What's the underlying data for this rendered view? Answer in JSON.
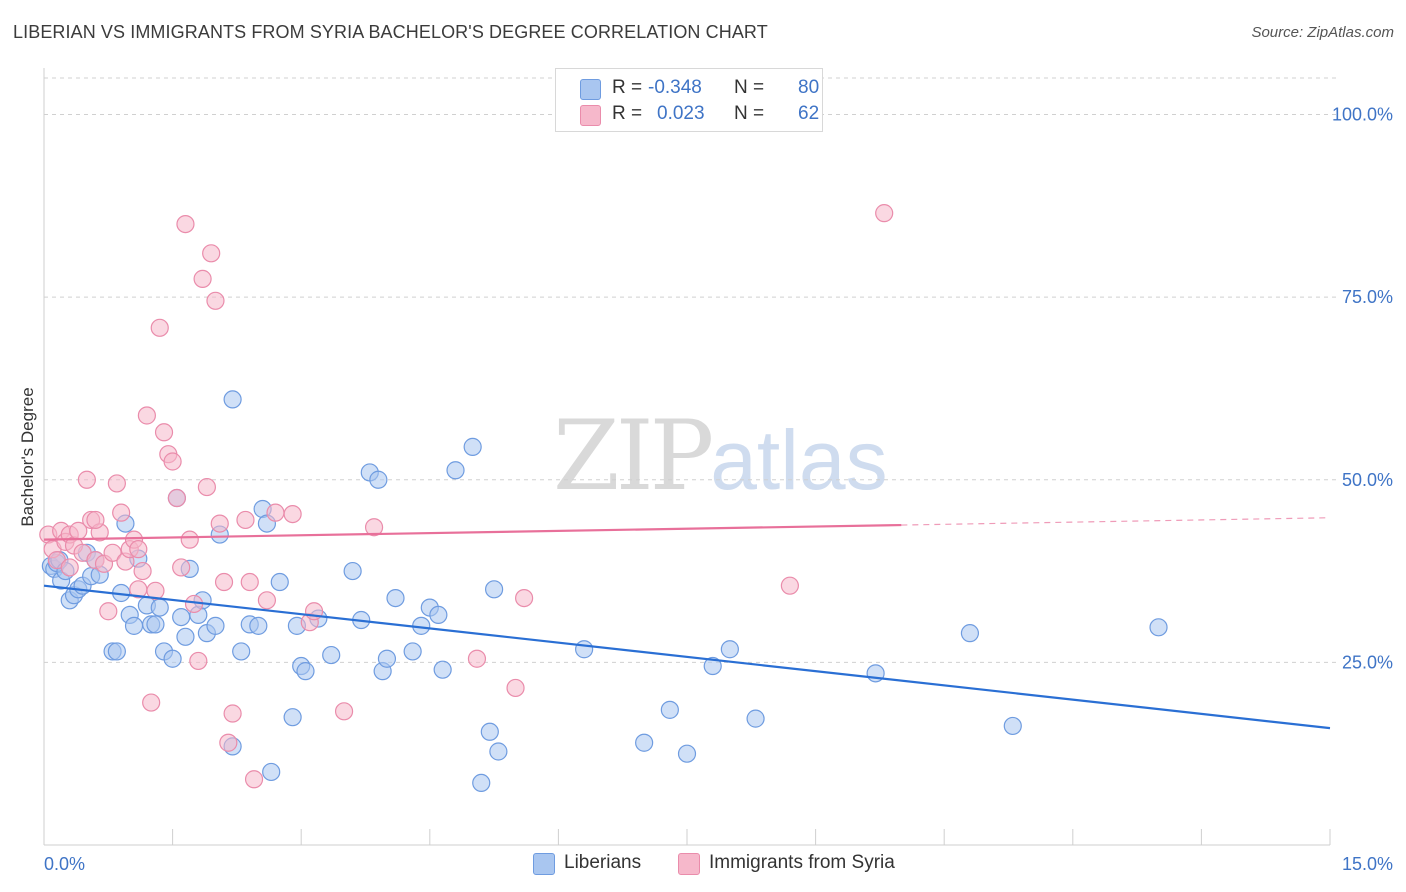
{
  "title": "LIBERIAN VS IMMIGRANTS FROM SYRIA BACHELOR'S DEGREE CORRELATION CHART",
  "source": "Source: ZipAtlas.com",
  "watermark": {
    "zip": "ZIP",
    "atlas": "atlas"
  },
  "legend": {
    "rows": [
      {
        "r_label": "R =",
        "r_value": "-0.348",
        "n_label": "N =",
        "n_value": "80"
      },
      {
        "r_label": "R =",
        "r_value": "0.023",
        "n_label": "N =",
        "n_value": "62"
      }
    ]
  },
  "bottom_legend": {
    "liberians": "Liberians",
    "syria": "Immigrants from Syria"
  },
  "colors": {
    "blue_fill": "#a9c6f0",
    "blue_stroke": "#6f9ce0",
    "blue_line": "#2a6fd4",
    "pink_fill": "#f6b8cb",
    "pink_stroke": "#ea8cab",
    "pink_line": "#e8709a",
    "tick_text": "#3f74c6",
    "grid": "#d0d0d0"
  },
  "chart_data": {
    "type": "scatter",
    "title": "LIBERIAN VS IMMIGRANTS FROM SYRIA BACHELOR'S DEGREE CORRELATION CHART",
    "xlabel": "",
    "ylabel": "Bachelor's Degree",
    "xlim": [
      0,
      15
    ],
    "ylim": [
      0,
      105
    ],
    "x_tick_labels": [
      "0.0%",
      "15.0%"
    ],
    "y_ticks": [
      25,
      50,
      75,
      100
    ],
    "y_tick_labels": [
      "25.0%",
      "50.0%",
      "75.0%",
      "100.0%"
    ],
    "grid": true,
    "legend_position": "top-center",
    "series": [
      {
        "name": "Liberians",
        "r": -0.348,
        "n": 80,
        "trend": {
          "x": [
            0,
            15
          ],
          "y": [
            35.5,
            16.0
          ]
        },
        "points": [
          [
            0.08,
            38.2
          ],
          [
            0.12,
            37.8
          ],
          [
            0.15,
            38.6
          ],
          [
            0.18,
            39.0
          ],
          [
            0.2,
            36.2
          ],
          [
            0.25,
            37.5
          ],
          [
            0.3,
            33.5
          ],
          [
            0.35,
            34.2
          ],
          [
            0.4,
            35.0
          ],
          [
            0.45,
            35.5
          ],
          [
            0.5,
            40.0
          ],
          [
            0.55,
            36.8
          ],
          [
            0.6,
            39.0
          ],
          [
            0.65,
            37.0
          ],
          [
            0.8,
            26.5
          ],
          [
            0.85,
            26.5
          ],
          [
            0.9,
            34.5
          ],
          [
            0.95,
            44.0
          ],
          [
            1.0,
            31.5
          ],
          [
            1.05,
            30.0
          ],
          [
            1.1,
            39.2
          ],
          [
            1.2,
            32.8
          ],
          [
            1.25,
            30.2
          ],
          [
            1.3,
            30.2
          ],
          [
            1.35,
            32.5
          ],
          [
            1.4,
            26.5
          ],
          [
            1.5,
            25.5
          ],
          [
            1.55,
            47.5
          ],
          [
            1.6,
            31.2
          ],
          [
            1.65,
            28.5
          ],
          [
            1.7,
            37.8
          ],
          [
            1.8,
            31.5
          ],
          [
            1.85,
            33.5
          ],
          [
            1.9,
            29.0
          ],
          [
            2.0,
            30.0
          ],
          [
            2.05,
            42.5
          ],
          [
            2.2,
            13.5
          ],
          [
            2.3,
            26.5
          ],
          [
            2.4,
            30.2
          ],
          [
            2.5,
            30.0
          ],
          [
            2.55,
            46.0
          ],
          [
            2.6,
            44.0
          ],
          [
            2.65,
            10.0
          ],
          [
            2.75,
            36.0
          ],
          [
            2.9,
            17.5
          ],
          [
            2.95,
            30.0
          ],
          [
            3.0,
            24.5
          ],
          [
            3.05,
            23.8
          ],
          [
            3.2,
            31.0
          ],
          [
            3.35,
            26.0
          ],
          [
            3.6,
            37.5
          ],
          [
            3.7,
            30.8
          ],
          [
            3.8,
            51.0
          ],
          [
            3.9,
            50.0
          ],
          [
            3.95,
            23.8
          ],
          [
            4.0,
            25.5
          ],
          [
            4.1,
            33.8
          ],
          [
            4.3,
            26.5
          ],
          [
            4.4,
            30.0
          ],
          [
            4.5,
            32.5
          ],
          [
            4.6,
            31.5
          ],
          [
            4.65,
            24.0
          ],
          [
            4.8,
            51.3
          ],
          [
            5.0,
            54.5
          ],
          [
            5.1,
            8.5
          ],
          [
            5.2,
            15.5
          ],
          [
            5.25,
            35.0
          ],
          [
            5.3,
            12.8
          ],
          [
            6.3,
            26.8
          ],
          [
            7.0,
            14.0
          ],
          [
            7.3,
            18.5
          ],
          [
            7.5,
            12.5
          ],
          [
            7.8,
            24.5
          ],
          [
            8.0,
            26.8
          ],
          [
            8.3,
            17.3
          ],
          [
            9.7,
            23.5
          ],
          [
            10.8,
            29.0
          ],
          [
            11.3,
            16.3
          ],
          [
            13.0,
            29.8
          ],
          [
            2.2,
            61.0
          ]
        ]
      },
      {
        "name": "Immigrants from Syria",
        "r": 0.023,
        "n": 62,
        "trend": {
          "x": [
            0,
            10
          ],
          "y": [
            41.8,
            43.8
          ],
          "dashed_to": [
            15,
            44.8
          ]
        },
        "points": [
          [
            0.05,
            42.5
          ],
          [
            0.1,
            40.5
          ],
          [
            0.15,
            39.0
          ],
          [
            0.2,
            43.0
          ],
          [
            0.25,
            41.5
          ],
          [
            0.3,
            42.5
          ],
          [
            0.35,
            41.0
          ],
          [
            0.4,
            43.0
          ],
          [
            0.45,
            40.0
          ],
          [
            0.5,
            50.0
          ],
          [
            0.55,
            44.5
          ],
          [
            0.6,
            39.0
          ],
          [
            0.65,
            42.8
          ],
          [
            0.7,
            38.5
          ],
          [
            0.75,
            32.0
          ],
          [
            0.8,
            40.0
          ],
          [
            0.85,
            49.5
          ],
          [
            0.9,
            45.5
          ],
          [
            0.95,
            38.8
          ],
          [
            1.0,
            40.5
          ],
          [
            1.05,
            41.8
          ],
          [
            1.1,
            35.0
          ],
          [
            1.15,
            37.5
          ],
          [
            1.2,
            58.8
          ],
          [
            1.25,
            19.5
          ],
          [
            1.3,
            34.8
          ],
          [
            1.35,
            70.8
          ],
          [
            1.4,
            56.5
          ],
          [
            1.45,
            53.5
          ],
          [
            1.5,
            52.5
          ],
          [
            1.55,
            47.5
          ],
          [
            1.6,
            38.0
          ],
          [
            1.65,
            85.0
          ],
          [
            1.7,
            41.8
          ],
          [
            1.75,
            33.0
          ],
          [
            1.8,
            25.2
          ],
          [
            1.85,
            77.5
          ],
          [
            1.9,
            49.0
          ],
          [
            1.95,
            81.0
          ],
          [
            2.0,
            74.5
          ],
          [
            2.05,
            44.0
          ],
          [
            2.1,
            36.0
          ],
          [
            2.15,
            14.0
          ],
          [
            2.2,
            18.0
          ],
          [
            2.35,
            44.5
          ],
          [
            2.4,
            36.0
          ],
          [
            2.45,
            9.0
          ],
          [
            2.6,
            33.5
          ],
          [
            2.7,
            45.5
          ],
          [
            2.9,
            45.3
          ],
          [
            3.1,
            30.5
          ],
          [
            3.15,
            32.0
          ],
          [
            3.5,
            18.3
          ],
          [
            3.85,
            43.5
          ],
          [
            5.05,
            25.5
          ],
          [
            5.5,
            21.5
          ],
          [
            5.6,
            33.8
          ],
          [
            8.7,
            35.5
          ],
          [
            9.8,
            86.5
          ],
          [
            0.3,
            38.0
          ],
          [
            1.1,
            40.5
          ],
          [
            0.6,
            44.5
          ]
        ]
      }
    ]
  }
}
